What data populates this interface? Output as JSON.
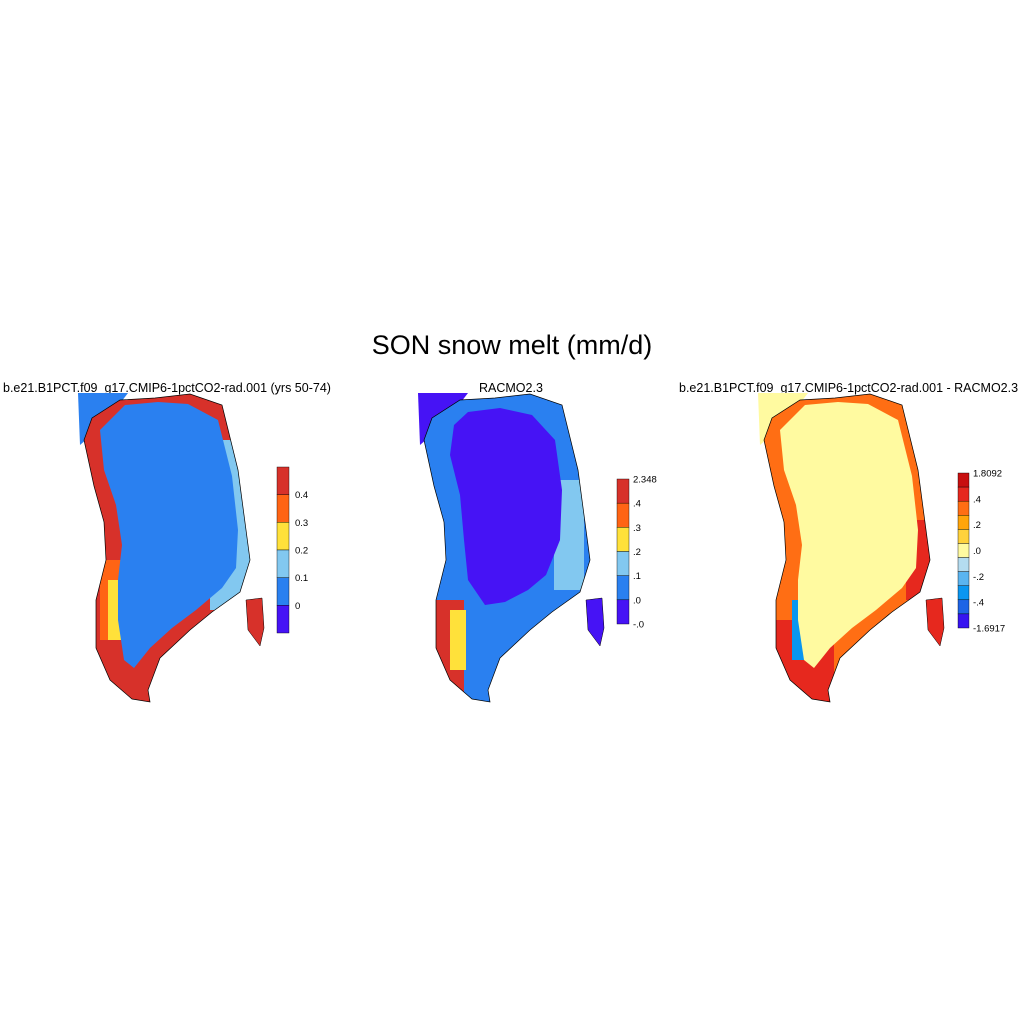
{
  "figure": {
    "title": "SON snow melt (mm/d)"
  },
  "panels": [
    {
      "title": "b.e21.B1PCT.f09_g17.CMIP6-1pctCO2-rad.001 (yrs 50-74)",
      "colorbar": {
        "labels": [
          "0.4",
          "0.3",
          "0.2",
          "0.1",
          "0"
        ],
        "colors": [
          "#d7312a",
          "#ff6414",
          "#ffe13a",
          "#82c8f0",
          "#2a80f0",
          "#4613f5"
        ]
      },
      "colors": {
        "interior": "#2a80f0",
        "ocean_mask": "#ffffff",
        "coast_high": "#d7312a"
      }
    },
    {
      "title": "RACMO2.3",
      "colorbar": {
        "labels": [
          "2.348",
          ".4",
          ".3",
          ".2",
          ".1",
          ".0",
          "-.0"
        ],
        "colors": [
          "#d7312a",
          "#ff6414",
          "#ffe13a",
          "#82c8f0",
          "#2a80f0",
          "#4613f5"
        ]
      },
      "colors": {
        "interior": "#4613f5",
        "margin": "#2a80f0"
      }
    },
    {
      "title": "b.e21.B1PCT.f09_g17.CMIP6-1pctCO2-rad.001 - RACMO2.3",
      "colorbar": {
        "labels": [
          "1.8092",
          ".4",
          ".2",
          ".0",
          "-.2",
          "-.4",
          "-1.6917"
        ],
        "colors": [
          "#c80f0f",
          "#e6281e",
          "#ff6e14",
          "#ffa50a",
          "#ffd23c",
          "#fffaa0",
          "#b4dcf0",
          "#5ab4f0",
          "#0a96f0",
          "#1e64e6",
          "#3714f0"
        ]
      },
      "colors": {
        "interior": "#fffaa0"
      }
    }
  ]
}
